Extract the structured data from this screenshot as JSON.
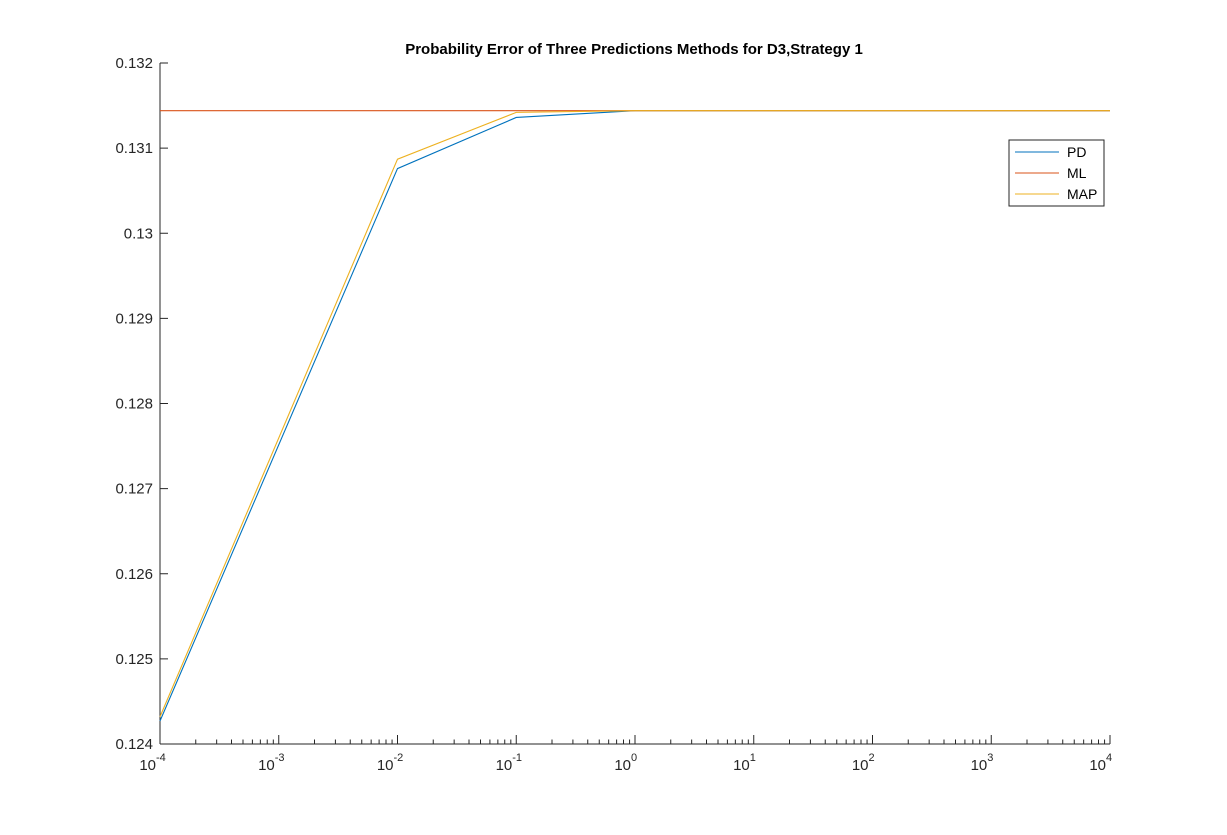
{
  "chart_data": {
    "type": "line",
    "title": "Probability Error of Three Predictions Methods for D3,Strategy 1",
    "xlabel": "",
    "ylabel": "",
    "xscale": "log",
    "xlim": [
      0.0001,
      10000
    ],
    "ylim": [
      0.124,
      0.132
    ],
    "x": [
      0.0001,
      0.01,
      0.1,
      1,
      10,
      100,
      1000,
      10000
    ],
    "x_tick_base": "10",
    "x_tick_exponents": [
      "-4",
      "-3",
      "-2",
      "-1",
      "0",
      "1",
      "2",
      "3",
      "4"
    ],
    "x_tick_values": [
      0.0001,
      0.001,
      0.01,
      0.1,
      1,
      10,
      100,
      1000,
      10000
    ],
    "y_tick_labels": [
      "0.124",
      "0.125",
      "0.126",
      "0.127",
      "0.128",
      "0.129",
      "0.13",
      "0.131",
      "0.132"
    ],
    "y_tick_values": [
      0.124,
      0.125,
      0.126,
      0.127,
      0.128,
      0.129,
      0.13,
      0.131,
      0.132
    ],
    "grid": false,
    "legend_position": "top-right",
    "series": [
      {
        "name": "PD",
        "color": "#0072BD",
        "values": [
          0.12427,
          0.13076,
          0.13136,
          0.13144,
          0.13144,
          0.13144,
          0.13144,
          0.13144
        ]
      },
      {
        "name": "ML",
        "color": "#D95319",
        "values": [
          0.13144,
          0.13144,
          0.13144,
          0.13144,
          0.13144,
          0.13144,
          0.13144,
          0.13144
        ]
      },
      {
        "name": "MAP",
        "color": "#EDB120",
        "values": [
          0.12432,
          0.13087,
          0.13142,
          0.13144,
          0.13144,
          0.13144,
          0.13144,
          0.13144
        ]
      }
    ]
  }
}
